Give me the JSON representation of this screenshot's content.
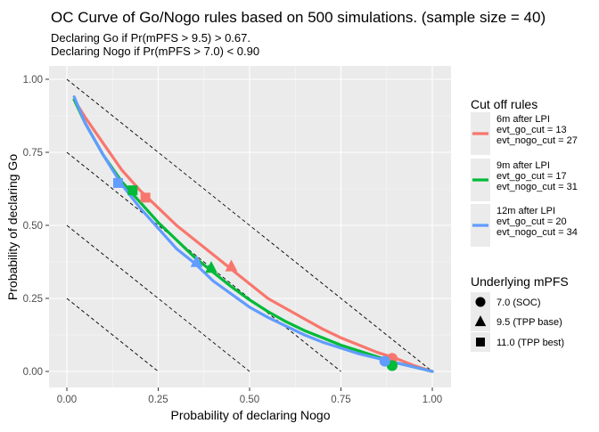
{
  "chart_data": {
    "type": "line",
    "title": "OC Curve of Go/Nogo rules based on 500 simulations. (sample size = 40)",
    "subtitle": [
      "Declaring Go if Pr(mPFS > 9.5) > 0.67.",
      "Declaring Nogo if Pr(mPFS > 7.0) < 0.90"
    ],
    "xlabel": "Probability of declaring Nogo",
    "ylabel": "Probability of declaring Go",
    "xlim": [
      0,
      1
    ],
    "ylim": [
      0,
      1
    ],
    "x_ticks": [
      "0.00",
      "0.25",
      "0.50",
      "0.75",
      "1.00"
    ],
    "y_ticks": [
      "0.00",
      "0.25",
      "0.50",
      "0.75",
      "1.00"
    ],
    "grid": true,
    "legend_position": "right",
    "reference_lines": [
      {
        "intercept": 0.25,
        "slope": -1
      },
      {
        "intercept": 0.5,
        "slope": -1
      },
      {
        "intercept": 0.75,
        "slope": -1
      },
      {
        "intercept": 1.0,
        "slope": -1
      }
    ],
    "series_legend_title": "Cut off rules",
    "series": [
      {
        "name": [
          "6m after LPI",
          "evt_go_cut = 13",
          "evt_nogo_cut = 27"
        ],
        "color": "#F8766D",
        "x": [
          0.02,
          0.05,
          0.1,
          0.15,
          0.2,
          0.25,
          0.3,
          0.35,
          0.4,
          0.45,
          0.5,
          0.55,
          0.6,
          0.65,
          0.7,
          0.75,
          0.8,
          0.85,
          0.9,
          0.95,
          1.0
        ],
        "y": [
          0.93,
          0.87,
          0.78,
          0.69,
          0.62,
          0.56,
          0.5,
          0.45,
          0.4,
          0.35,
          0.3,
          0.25,
          0.215,
          0.18,
          0.145,
          0.115,
          0.09,
          0.065,
          0.045,
          0.02,
          0.0
        ]
      },
      {
        "name": [
          "9m after LPI",
          "evt_go_cut = 17",
          "evt_nogo_cut = 31"
        ],
        "color": "#00BA38",
        "x": [
          0.02,
          0.05,
          0.1,
          0.15,
          0.2,
          0.25,
          0.3,
          0.35,
          0.4,
          0.45,
          0.5,
          0.55,
          0.6,
          0.65,
          0.7,
          0.75,
          0.8,
          0.85,
          0.9,
          0.95,
          1.0
        ],
        "y": [
          0.93,
          0.85,
          0.74,
          0.65,
          0.58,
          0.51,
          0.45,
          0.39,
          0.34,
          0.29,
          0.245,
          0.205,
          0.17,
          0.14,
          0.115,
          0.09,
          0.07,
          0.05,
          0.03,
          0.015,
          0.0
        ]
      },
      {
        "name": [
          "12m after LPI",
          "evt_go_cut = 20",
          "evt_nogo_cut = 34"
        ],
        "color": "#619CFF",
        "x": [
          0.02,
          0.05,
          0.1,
          0.15,
          0.2,
          0.25,
          0.3,
          0.35,
          0.4,
          0.45,
          0.5,
          0.55,
          0.6,
          0.65,
          0.7,
          0.75,
          0.8,
          0.85,
          0.9,
          0.95,
          1.0
        ],
        "y": [
          0.94,
          0.85,
          0.74,
          0.64,
          0.56,
          0.49,
          0.42,
          0.37,
          0.31,
          0.265,
          0.22,
          0.185,
          0.155,
          0.125,
          0.1,
          0.08,
          0.06,
          0.045,
          0.03,
          0.015,
          0.0
        ]
      }
    ],
    "points_legend_title": "Underlying mPFS",
    "point_shapes": [
      {
        "label": "7.0 (SOC)",
        "shape": "circle"
      },
      {
        "label": "9.5 (TPP base)",
        "shape": "triangle"
      },
      {
        "label": "11.0 (TPP best)",
        "shape": "square"
      }
    ],
    "points": [
      {
        "series": 0,
        "shape": 0,
        "x": 0.89,
        "y": 0.045
      },
      {
        "series": 0,
        "shape": 1,
        "x": 0.45,
        "y": 0.36
      },
      {
        "series": 0,
        "shape": 2,
        "x": 0.215,
        "y": 0.595
      },
      {
        "series": 1,
        "shape": 0,
        "x": 0.89,
        "y": 0.02
      },
      {
        "series": 1,
        "shape": 1,
        "x": 0.395,
        "y": 0.355
      },
      {
        "series": 1,
        "shape": 2,
        "x": 0.18,
        "y": 0.62
      },
      {
        "series": 2,
        "shape": 0,
        "x": 0.87,
        "y": 0.035
      },
      {
        "series": 2,
        "shape": 1,
        "x": 0.355,
        "y": 0.375
      },
      {
        "series": 2,
        "shape": 2,
        "x": 0.14,
        "y": 0.645
      }
    ]
  }
}
